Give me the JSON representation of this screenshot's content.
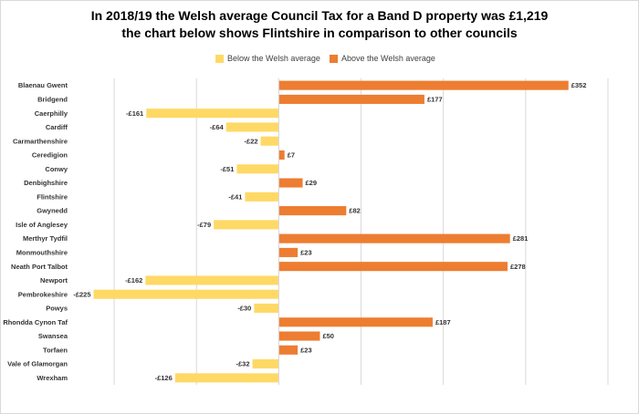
{
  "title": {
    "line1": "In 2018/19 the Welsh average Council Tax for a Band D property was £1,219",
    "line2": "the chart below shows Flintshire in comparison to other councils"
  },
  "legend": {
    "below_label": "Below the Welsh average",
    "above_label": "Above the Welsh average"
  },
  "colors": {
    "below": "#ffd966",
    "above": "#ed7d31",
    "gridline": "#d9d9d9"
  },
  "chart_data": {
    "type": "bar",
    "orientation": "horizontal",
    "title": "In 2018/19 the Welsh average Council Tax for a Band D property was £1,219 the chart below shows Flintshire in comparison to other councils",
    "xlabel": "",
    "ylabel": "",
    "xlim": [
      -250,
      400
    ],
    "grid": true,
    "legend_position": "top",
    "categories": [
      "Blaenau Gwent",
      "Bridgend",
      "Caerphilly",
      "Cardiff",
      "Carmarthenshire",
      "Ceredigion",
      "Conwy",
      "Denbighshire",
      "Flintshire",
      "Gwynedd",
      "Isle of Anglesey",
      "Merthyr Tydfil",
      "Monmouthshire",
      "Neath Port Talbot",
      "Newport",
      "Pembrokeshire",
      "Powys",
      "Rhondda Cynon Taf",
      "Swansea",
      "Torfaen",
      "Vale of Glamorgan",
      "Wrexham"
    ],
    "values": [
      352,
      177,
      -161,
      -64,
      -22,
      7,
      -51,
      29,
      -41,
      82,
      -79,
      281,
      23,
      278,
      -162,
      -225,
      -30,
      187,
      50,
      23,
      -32,
      -126
    ],
    "data_labels": [
      "£352",
      "£177",
      "-£161",
      "-£64",
      "-£22",
      "£7",
      "-£51",
      "£29",
      "-£41",
      "£82",
      "-£79",
      "£281",
      "£23",
      "£278",
      "-£162",
      "-£225",
      "-£30",
      "£187",
      "£50",
      "£23",
      "-£32",
      "-£126"
    ],
    "series": [
      {
        "name": "Below the Welsh average",
        "rule": "value < 0"
      },
      {
        "name": "Above the Welsh average",
        "rule": "value >= 0"
      }
    ]
  }
}
